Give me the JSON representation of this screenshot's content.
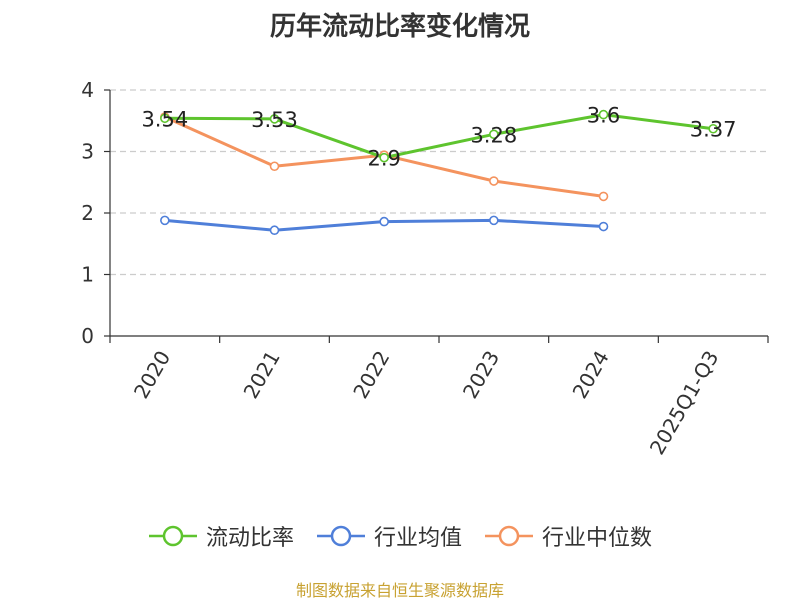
{
  "title": "历年流动比率变化情况",
  "source": "制图数据来自恒生聚源数据库",
  "source_color": "#c8a232",
  "chart_data": {
    "type": "line",
    "title": "历年流动比率变化情况",
    "categories": [
      "2020",
      "2021",
      "2022",
      "2023",
      "2024",
      "2025Q1-Q3"
    ],
    "ylim": [
      0,
      4
    ],
    "yticks": [
      0,
      1,
      2,
      3,
      4
    ],
    "grid": true,
    "legend_position": "bottom",
    "series": [
      {
        "name": "流动比率",
        "color": "#5ec42e",
        "values": [
          3.54,
          3.53,
          2.9,
          3.28,
          3.6,
          3.37
        ],
        "labels": [
          "3.54",
          "3.53",
          "2.9",
          "3.28",
          "3.6",
          "3.37"
        ]
      },
      {
        "name": "行业均值",
        "color": "#4f7fd9",
        "values": [
          1.88,
          1.72,
          1.86,
          1.88,
          1.78,
          null
        ]
      },
      {
        "name": "行业中位数",
        "color": "#f4935e",
        "values": [
          3.56,
          2.76,
          2.94,
          2.52,
          2.27,
          null
        ]
      }
    ]
  }
}
